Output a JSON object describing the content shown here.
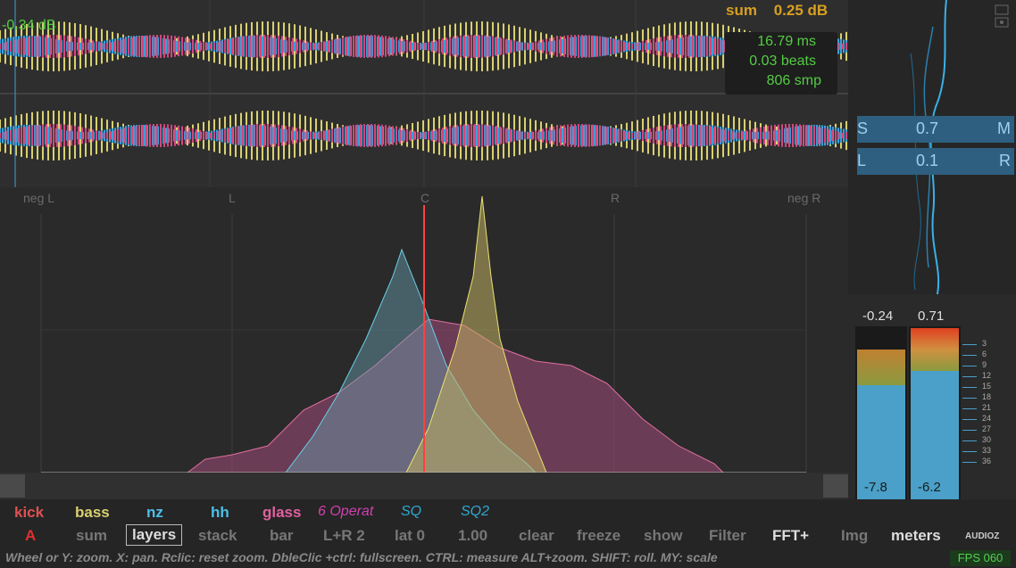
{
  "waveform": {
    "level_label": "-0.34 dB",
    "sum_label": "sum",
    "sum_value": "0.25 dB",
    "measure": {
      "ms": "16.79 ms",
      "beats": "0.03 beats",
      "samples": "806 smp"
    }
  },
  "panorama": {
    "ticks": [
      "neg L",
      "L",
      "C",
      "R",
      "neg R"
    ]
  },
  "side": {
    "box1": {
      "left": "S",
      "value": "0.7",
      "right": "M"
    },
    "box2": {
      "left": "L",
      "value": "0.1",
      "right": "R"
    }
  },
  "meters": {
    "left_peak": "-0.24",
    "right_peak": "0.71",
    "left_rms": "-7.8",
    "right_rms": "-6.2",
    "scale": [
      "3",
      "6",
      "9",
      "12",
      "15",
      "18",
      "21",
      "24",
      "27",
      "30",
      "33",
      "36"
    ]
  },
  "layers": [
    {
      "label": "kick",
      "color": "#e05050"
    },
    {
      "label": "bass",
      "color": "#d8d070"
    },
    {
      "label": "nz",
      "color": "#4cc0e8"
    },
    {
      "label": "hh",
      "color": "#4cc0e8"
    },
    {
      "label": "glass",
      "color": "#e060a0"
    },
    {
      "label": "6 Operat",
      "color": "#d040b0"
    },
    {
      "label": "SQ",
      "color": "#30a8d0"
    },
    {
      "label": "SQ2",
      "color": "#30a8d0"
    }
  ],
  "controls": {
    "a": "A",
    "sum": "sum",
    "layers": "layers",
    "stack": "stack",
    "bar": "bar",
    "lr": "L+R 2",
    "lat": "lat 0",
    "speed": "1.00",
    "clear": "clear",
    "freeze": "freeze",
    "show": "show",
    "filter": "Filter",
    "fft": "FFT+",
    "img": "Img",
    "meters": "meters",
    "logo": "AUDIOZ"
  },
  "status": "Wheel or Y: zoom. X: pan. Rclic: reset zoom. DbleClic +ctrl: fullscreen. CTRL: measure ALT+zoom. SHIFT: roll. MY: scale",
  "fps": "FPS 060"
}
